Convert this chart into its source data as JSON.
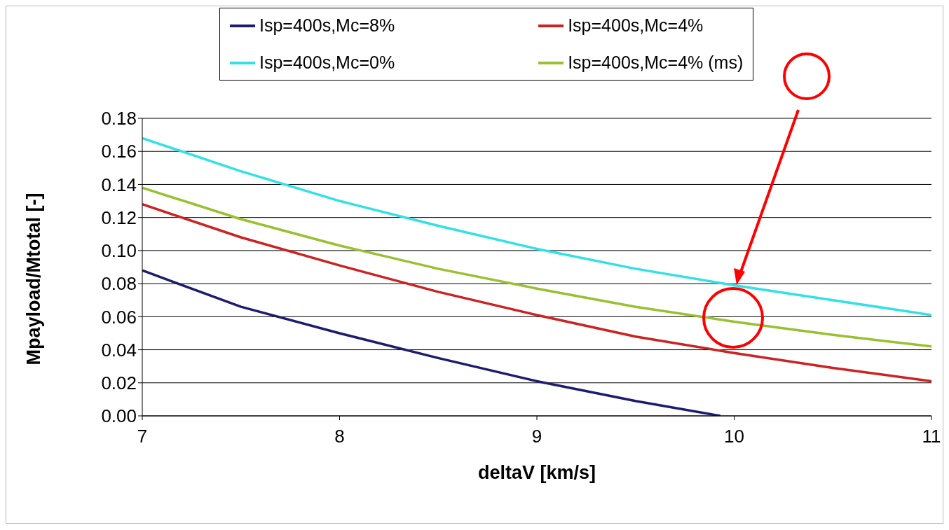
{
  "chart_data": {
    "type": "line",
    "xlabel": "deltaV [km/s]",
    "ylabel": "Mpayload/Mtotal [-]",
    "xlim": [
      7,
      11
    ],
    "xticks": [
      7,
      8,
      9,
      10,
      11
    ],
    "ylim": [
      0,
      0.18
    ],
    "yticks": [
      {
        "value": 0,
        "label": "0.00"
      },
      {
        "value": 0.02,
        "label": "0.02"
      },
      {
        "value": 0.04,
        "label": "0.04"
      },
      {
        "value": 0.06,
        "label": "0.06"
      },
      {
        "value": 0.08,
        "label": "0.08"
      },
      {
        "value": 0.1,
        "label": "0.10"
      },
      {
        "value": 0.12,
        "label": "0.12"
      },
      {
        "value": 0.14,
        "label": "0.14"
      },
      {
        "value": 0.16,
        "label": "0.16"
      },
      {
        "value": 0.18,
        "label": "0.18"
      }
    ],
    "grid": "y",
    "legend": "top",
    "marker": "none",
    "line_style": "solid",
    "series": [
      {
        "name": "Isp=400s,Mc=8%",
        "color": "#1c1c70",
        "x": [
          7,
          7.5,
          8,
          8.5,
          9,
          9.5,
          9.93
        ],
        "values": [
          0.088,
          0.066,
          0.05,
          0.035,
          0.021,
          0.009,
          0
        ]
      },
      {
        "name": "Isp=400s,Mc=4%",
        "color": "#cc2222",
        "x": [
          7,
          7.5,
          8,
          8.5,
          9,
          9.5,
          10,
          10.5,
          11
        ],
        "values": [
          0.128,
          0.108,
          0.091,
          0.075,
          0.061,
          0.048,
          0.038,
          0.029,
          0.021
        ]
      },
      {
        "name": "Isp=400s,Mc=0%",
        "color": "#33e0e8",
        "x": [
          7,
          7.5,
          8,
          8.5,
          9,
          9.5,
          10,
          10.5,
          11
        ],
        "values": [
          0.168,
          0.148,
          0.13,
          0.115,
          0.101,
          0.089,
          0.079,
          0.07,
          0.061
        ]
      },
      {
        "name": "Isp=400s,Mc=4% (ms)",
        "color": "#99c030",
        "x": [
          7,
          7.5,
          8,
          8.5,
          9,
          9.5,
          10,
          10.5,
          11
        ],
        "values": [
          0.138,
          0.119,
          0.103,
          0.089,
          0.077,
          0.066,
          0.057,
          0.049,
          0.042
        ]
      }
    ]
  }
}
